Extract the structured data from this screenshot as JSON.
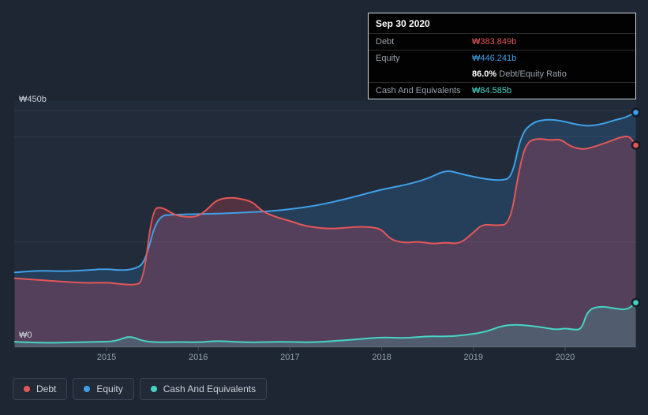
{
  "colors": {
    "debt": "#e45757",
    "equity": "#3fa0e8",
    "cash": "#46d4c4",
    "background": "#1e2634",
    "tooltip_background": "#020202"
  },
  "tooltip": {
    "date": "Sep 30 2020",
    "debt": {
      "label": "Debt",
      "value": "₩383.849b"
    },
    "equity": {
      "label": "Equity",
      "value": "₩446.241b"
    },
    "ratio": {
      "value": "86.0%",
      "label": "Debt/Equity Ratio"
    },
    "cash": {
      "label": "Cash And Equivalents",
      "value": "₩84.585b"
    }
  },
  "axes": {
    "y_max_label": "₩450b",
    "y_min_label": "₩0",
    "x_ticks": [
      "2015",
      "2016",
      "2017",
      "2018",
      "2019",
      "2020"
    ]
  },
  "legend": {
    "items": [
      {
        "label": "Debt",
        "color": "#e45757"
      },
      {
        "label": "Equity",
        "color": "#3fa0e8"
      },
      {
        "label": "Cash And Equivalents",
        "color": "#46d4c4"
      }
    ]
  },
  "chart_data": {
    "type": "area",
    "x_range": [
      2014.0,
      2020.77
    ],
    "y_range": [
      0,
      450
    ],
    "y_unit": "₩ billions",
    "y_gridline_values": [
      450,
      400,
      200
    ],
    "x_tick_years": [
      2015,
      2016,
      2017,
      2018,
      2019,
      2020
    ],
    "latest": {
      "date": "Sep 30 2020",
      "debt_b": 383.849,
      "equity_b": 446.241,
      "cash_b": 84.585,
      "debt_equity_ratio_pct": 86.0
    },
    "series": [
      {
        "name": "Equity",
        "color": "#3fa0e8",
        "fill": "rgba(47,124,190,0.26)",
        "points": [
          [
            2014.0,
            142
          ],
          [
            2014.25,
            146
          ],
          [
            2014.5,
            144
          ],
          [
            2014.75,
            146
          ],
          [
            2015.0,
            149
          ],
          [
            2015.15,
            146
          ],
          [
            2015.3,
            148
          ],
          [
            2015.42,
            160
          ],
          [
            2015.55,
            250
          ],
          [
            2015.75,
            252
          ],
          [
            2016.0,
            253
          ],
          [
            2016.25,
            254
          ],
          [
            2016.5,
            256
          ],
          [
            2016.75,
            258
          ],
          [
            2017.0,
            262
          ],
          [
            2017.25,
            268
          ],
          [
            2017.5,
            277
          ],
          [
            2017.75,
            288
          ],
          [
            2018.0,
            300
          ],
          [
            2018.25,
            308
          ],
          [
            2018.5,
            320
          ],
          [
            2018.7,
            337
          ],
          [
            2018.85,
            330
          ],
          [
            2019.0,
            324
          ],
          [
            2019.15,
            319
          ],
          [
            2019.3,
            317
          ],
          [
            2019.42,
            322
          ],
          [
            2019.52,
            405
          ],
          [
            2019.65,
            428
          ],
          [
            2019.8,
            433
          ],
          [
            2019.95,
            431
          ],
          [
            2020.1,
            424
          ],
          [
            2020.25,
            420
          ],
          [
            2020.4,
            424
          ],
          [
            2020.55,
            432
          ],
          [
            2020.65,
            436
          ],
          [
            2020.77,
            446.241
          ]
        ]
      },
      {
        "name": "Debt",
        "color": "#e45757",
        "fill": "rgba(222,70,90,0.26)",
        "points": [
          [
            2014.0,
            131
          ],
          [
            2014.25,
            128
          ],
          [
            2014.5,
            125
          ],
          [
            2014.75,
            122
          ],
          [
            2015.0,
            123
          ],
          [
            2015.15,
            120
          ],
          [
            2015.3,
            118
          ],
          [
            2015.4,
            124
          ],
          [
            2015.5,
            262
          ],
          [
            2015.6,
            267
          ],
          [
            2015.75,
            250
          ],
          [
            2015.9,
            247
          ],
          [
            2016.0,
            249
          ],
          [
            2016.1,
            262
          ],
          [
            2016.2,
            280
          ],
          [
            2016.35,
            285
          ],
          [
            2016.5,
            281
          ],
          [
            2016.6,
            275
          ],
          [
            2016.7,
            258
          ],
          [
            2016.85,
            247
          ],
          [
            2017.0,
            240
          ],
          [
            2017.15,
            231
          ],
          [
            2017.3,
            227
          ],
          [
            2017.45,
            225
          ],
          [
            2017.6,
            227
          ],
          [
            2017.75,
            229
          ],
          [
            2017.9,
            228
          ],
          [
            2018.0,
            224
          ],
          [
            2018.1,
            204
          ],
          [
            2018.25,
            198
          ],
          [
            2018.4,
            201
          ],
          [
            2018.55,
            196
          ],
          [
            2018.7,
            199
          ],
          [
            2018.85,
            196
          ],
          [
            2019.0,
            218
          ],
          [
            2019.1,
            234
          ],
          [
            2019.25,
            231
          ],
          [
            2019.4,
            234
          ],
          [
            2019.5,
            340
          ],
          [
            2019.58,
            390
          ],
          [
            2019.7,
            397
          ],
          [
            2019.85,
            393
          ],
          [
            2019.95,
            396
          ],
          [
            2020.05,
            382
          ],
          [
            2020.2,
            375
          ],
          [
            2020.35,
            383
          ],
          [
            2020.5,
            392
          ],
          [
            2020.6,
            399
          ],
          [
            2020.7,
            402
          ],
          [
            2020.77,
            383.849
          ]
        ]
      },
      {
        "name": "Cash And Equivalents",
        "color": "#46d4c4",
        "fill": "rgba(69,208,192,0.20)",
        "points": [
          [
            2014.0,
            10
          ],
          [
            2014.3,
            8
          ],
          [
            2014.6,
            9
          ],
          [
            2014.9,
            10
          ],
          [
            2015.1,
            11
          ],
          [
            2015.25,
            22
          ],
          [
            2015.4,
            11
          ],
          [
            2015.6,
            9
          ],
          [
            2015.8,
            10
          ],
          [
            2016.0,
            9
          ],
          [
            2016.2,
            12
          ],
          [
            2016.4,
            10
          ],
          [
            2016.6,
            9
          ],
          [
            2016.8,
            10
          ],
          [
            2017.0,
            10
          ],
          [
            2017.25,
            9
          ],
          [
            2017.5,
            12
          ],
          [
            2017.75,
            15
          ],
          [
            2018.0,
            19
          ],
          [
            2018.25,
            17
          ],
          [
            2018.5,
            21
          ],
          [
            2018.75,
            20
          ],
          [
            2019.0,
            25
          ],
          [
            2019.15,
            30
          ],
          [
            2019.3,
            40
          ],
          [
            2019.45,
            43
          ],
          [
            2019.6,
            41
          ],
          [
            2019.75,
            38
          ],
          [
            2019.9,
            33
          ],
          [
            2020.0,
            36
          ],
          [
            2020.1,
            33
          ],
          [
            2020.18,
            34
          ],
          [
            2020.25,
            72
          ],
          [
            2020.4,
            78
          ],
          [
            2020.55,
            73
          ],
          [
            2020.68,
            71
          ],
          [
            2020.77,
            84.585
          ]
        ]
      }
    ]
  }
}
